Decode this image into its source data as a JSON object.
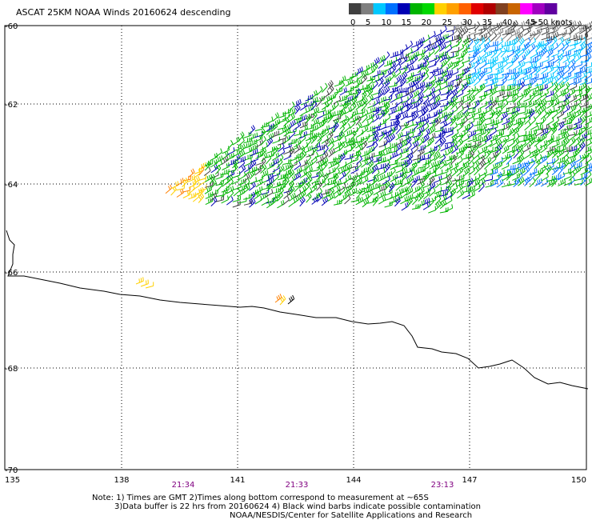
{
  "title": "ASCAT 25KM NOAA Winds 20160624 descending",
  "legend": {
    "colors": [
      "#404040",
      "#7f7f7f",
      "#00c8ff",
      "#0070ff",
      "#0000b4",
      "#00b400",
      "#00d800",
      "#ffd000",
      "#ffa000",
      "#ff6000",
      "#e00000",
      "#b00000",
      "#804020",
      "#c86400",
      "#ff00ff",
      "#a000c0",
      "#6000a0"
    ],
    "labels": [
      "0",
      "5",
      "10",
      "15",
      "20",
      "25",
      "30",
      "35",
      "40",
      "45",
      ">50 knots"
    ]
  },
  "lat_labels": [
    "-60",
    "-62",
    "-64",
    "-66",
    "-68",
    "-70"
  ],
  "lon_labels": [
    "135",
    "138",
    "141",
    "144",
    "147",
    "150"
  ],
  "time_labels": [
    "21:34",
    "21:33",
    "23:13"
  ],
  "notes": [
    "Note: 1) Times are GMT 2)Times along bottom correspond to measurement at ~65S",
    "3)Data buffer is 22 hrs from 20160624 4) Black wind barbs indicate possible contamination",
    "NOAA/NESDIS/Center for Satellite Applications and Research"
  ]
}
